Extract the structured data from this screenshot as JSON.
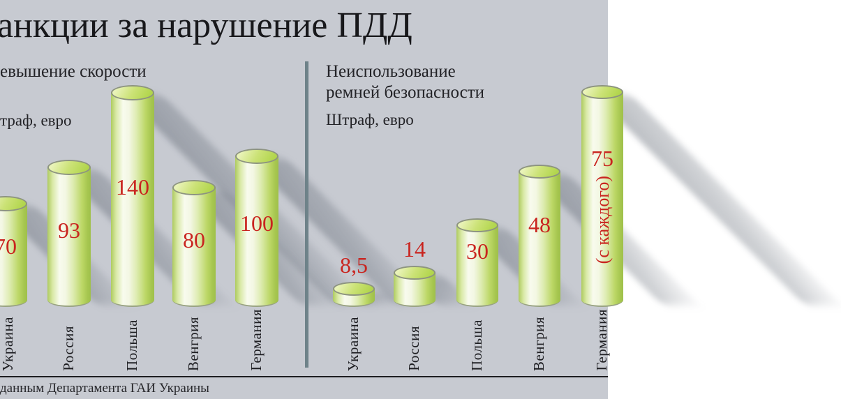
{
  "title": "анкции за нарушение ПДД",
  "footer": {
    "source": "данным Департамента ГАИ Украины"
  },
  "colors": {
    "background": "#c7cad1",
    "accent_red": "#c9241f",
    "divider": "#6e8289",
    "cylinder_green": "#b3d54e"
  },
  "chart_data": [
    {
      "type": "bar",
      "title": "евышение скорости",
      "ylabel": "траф, евро",
      "categories": [
        "Украина",
        "Россия",
        "Польша",
        "Венгрия",
        "Германия"
      ],
      "values": [
        70,
        93,
        140,
        80,
        100
      ],
      "value_labels": [
        "70",
        "93",
        "140",
        "80",
        "100"
      ],
      "unit": "евро",
      "legend_position": "none",
      "grid": false,
      "note": "leftmost column (Украина) partially cropped by image edge"
    },
    {
      "type": "bar",
      "title": "Неиспользование ремней безопасности",
      "title_lines": [
        "Неиспользование",
        "ремней безопасности"
      ],
      "ylabel": "Штраф, евро",
      "categories": [
        "Украина",
        "Россия",
        "Польша",
        "Венгрия",
        "Германия"
      ],
      "values": [
        8.5,
        14,
        30,
        48,
        75
      ],
      "value_labels": [
        "8,5",
        "14",
        "30",
        "48",
        "75"
      ],
      "unit": "евро",
      "legend_position": "none",
      "grid": false,
      "annotations": [
        {
          "bar": "Германия",
          "text": "(с каждого)"
        }
      ]
    }
  ]
}
